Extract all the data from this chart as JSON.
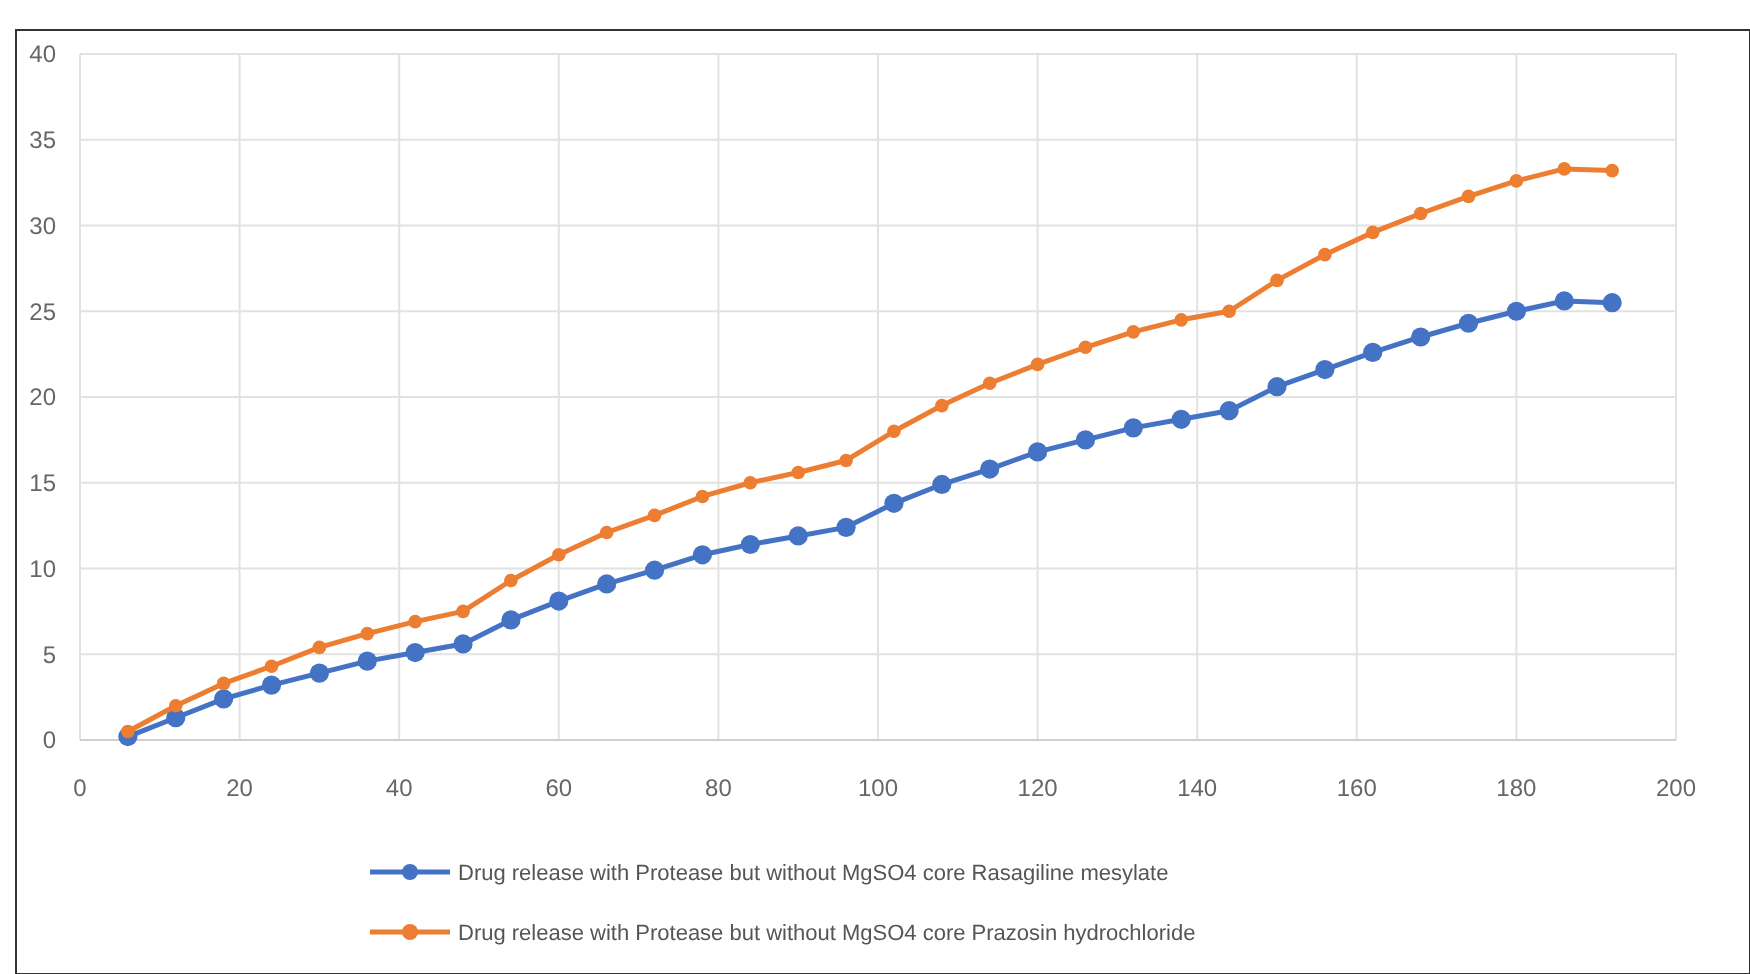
{
  "chart_data": {
    "type": "line",
    "x": [
      6,
      12,
      18,
      24,
      30,
      36,
      42,
      48,
      54,
      60,
      66,
      72,
      78,
      84,
      90,
      96,
      102,
      108,
      114,
      120,
      126,
      132,
      138,
      144,
      150,
      156,
      162,
      168,
      174,
      180,
      186,
      192
    ],
    "series": [
      {
        "name": "Drug release with Protease but without MgSO4 core Rasagiline mesylate",
        "color": "#4472c4",
        "values": [
          0.2,
          1.3,
          2.4,
          3.2,
          3.9,
          4.6,
          5.1,
          5.6,
          7.0,
          8.1,
          9.1,
          9.9,
          10.8,
          11.4,
          11.9,
          12.4,
          13.8,
          14.9,
          15.8,
          16.8,
          17.5,
          18.2,
          18.7,
          19.2,
          20.6,
          21.6,
          22.6,
          23.5,
          24.3,
          25.0,
          25.6,
          25.5
        ]
      },
      {
        "name": "Drug release with Protease but without MgSO4 core Prazosin hydrochloride",
        "color": "#ed7d31",
        "values": [
          0.5,
          2.0,
          3.3,
          4.3,
          5.4,
          6.2,
          6.9,
          7.5,
          9.3,
          10.8,
          12.1,
          13.1,
          14.2,
          15.0,
          15.6,
          16.3,
          18.0,
          19.5,
          20.8,
          21.9,
          22.9,
          23.8,
          24.5,
          25.0,
          26.8,
          28.3,
          29.6,
          30.7,
          31.7,
          32.6,
          33.3,
          33.2
        ]
      }
    ],
    "xlim": [
      0,
      200
    ],
    "xticks": [
      0,
      20,
      40,
      60,
      80,
      100,
      120,
      140,
      160,
      180,
      200
    ],
    "ylim": [
      0,
      40
    ],
    "yticks": [
      0,
      5,
      10,
      15,
      20,
      25,
      30,
      35,
      40
    ],
    "grid": true,
    "legend": "bottom",
    "marker": "circle",
    "line_style": "solid"
  }
}
